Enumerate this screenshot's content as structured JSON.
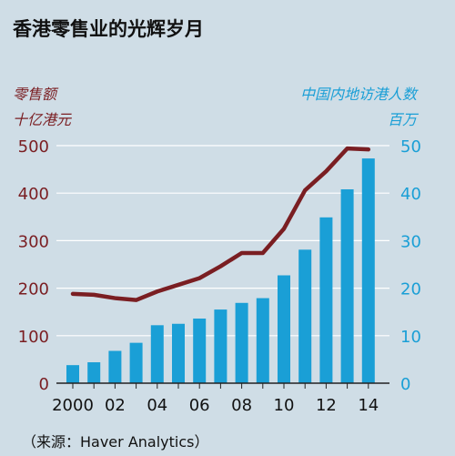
{
  "chart_data": {
    "type": "bar+line",
    "title": "香港零售业的光辉岁月",
    "left_axis": {
      "label_line1": "零售额",
      "label_line2": "十亿港元",
      "ylim": [
        0,
        500
      ],
      "ticks": [
        0,
        100,
        200,
        300,
        400,
        500
      ],
      "color": "#7a1e22"
    },
    "right_axis": {
      "label_line1": "中国内地访港人数",
      "label_line2": "百万",
      "ylim": [
        0,
        50
      ],
      "ticks": [
        0,
        10,
        20,
        30,
        40,
        50
      ],
      "color": "#1a9fd6"
    },
    "x": [
      2000,
      2001,
      2002,
      2003,
      2004,
      2005,
      2006,
      2007,
      2008,
      2009,
      2010,
      2011,
      2012,
      2013,
      2014
    ],
    "x_tick_labels": [
      {
        "x": 2000,
        "label": "2000"
      },
      {
        "x": 2002,
        "label": "02"
      },
      {
        "x": 2004,
        "label": "04"
      },
      {
        "x": 2006,
        "label": "06"
      },
      {
        "x": 2008,
        "label": "08"
      },
      {
        "x": 2010,
        "label": "10"
      },
      {
        "x": 2012,
        "label": "12"
      },
      {
        "x": 2014,
        "label": "14"
      }
    ],
    "bar_series": {
      "axis": "right",
      "color": "#1a9fd6",
      "values": [
        3.8,
        4.4,
        6.8,
        8.5,
        12.2,
        12.5,
        13.6,
        15.5,
        16.9,
        17.9,
        22.7,
        28.1,
        34.9,
        40.8,
        47.3
      ]
    },
    "line_series": {
      "axis": "left",
      "color": "#7a1e22",
      "values": [
        188,
        186,
        179,
        175,
        193,
        207,
        221,
        246,
        274,
        274,
        325,
        406,
        446,
        494,
        492
      ]
    },
    "grid": true,
    "source": "（来源：Haver Analytics）"
  }
}
